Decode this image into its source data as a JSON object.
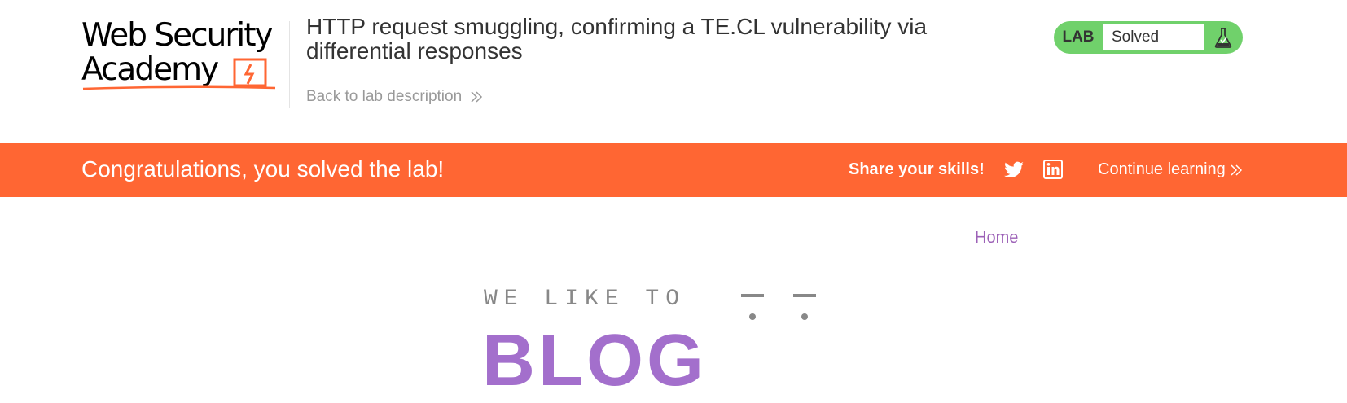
{
  "logo": {
    "line1": "Web Security",
    "line2": "Academy",
    "accent_color": "#ff6633"
  },
  "lab": {
    "title": "HTTP request smuggling, confirming a TE.CL vulnerability via differential responses",
    "back_link": "Back to lab description",
    "status_label": "LAB",
    "status_value": "Solved",
    "status_color": "#70d16b",
    "icon": "flask-icon"
  },
  "banner": {
    "message": "Congratulations, you solved the lab!",
    "share_label": "Share your skills!",
    "continue_label": "Continue learning",
    "color": "#ff6633",
    "icons": [
      "twitter-icon",
      "linkedin-icon"
    ]
  },
  "nav": {
    "home": "Home"
  },
  "blog": {
    "tagline": "WE LIKE TO",
    "word": "BLOG",
    "accent_color": "#a36fcc"
  }
}
